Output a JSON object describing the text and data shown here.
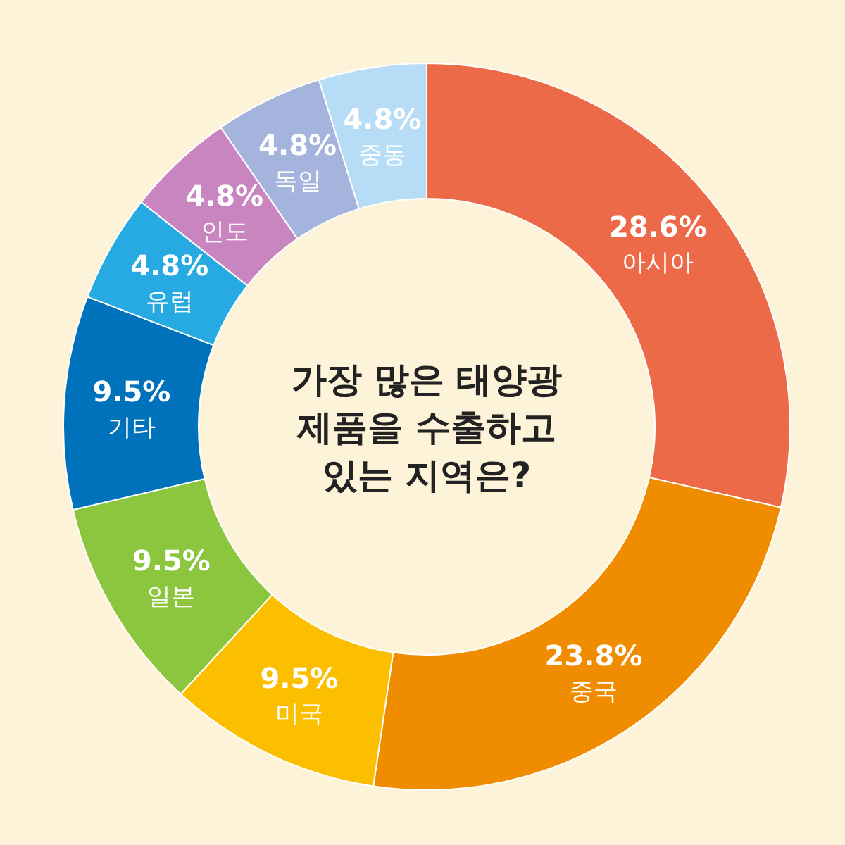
{
  "chart_data": {
    "type": "donut",
    "title": "가장 많은 태양광\n제품을 수출하고\n있는 지역은?",
    "categories": [
      "아시아",
      "중국",
      "미국",
      "일본",
      "기타",
      "유럽",
      "인도",
      "독일",
      "중동"
    ],
    "values": [
      28.6,
      23.8,
      9.5,
      9.5,
      9.5,
      4.8,
      4.8,
      4.8,
      4.8
    ],
    "value_labels": [
      "28.6%",
      "23.8%",
      "9.5%",
      "9.5%",
      "9.5%",
      "4.8%",
      "4.8%",
      "4.8%",
      "4.8%"
    ],
    "colors": [
      "#ec6a47",
      "#f08c00",
      "#fbbf00",
      "#8cc63f",
      "#0072bc",
      "#27aae1",
      "#c985c0",
      "#a5b4dd",
      "#b7dcf5"
    ]
  }
}
